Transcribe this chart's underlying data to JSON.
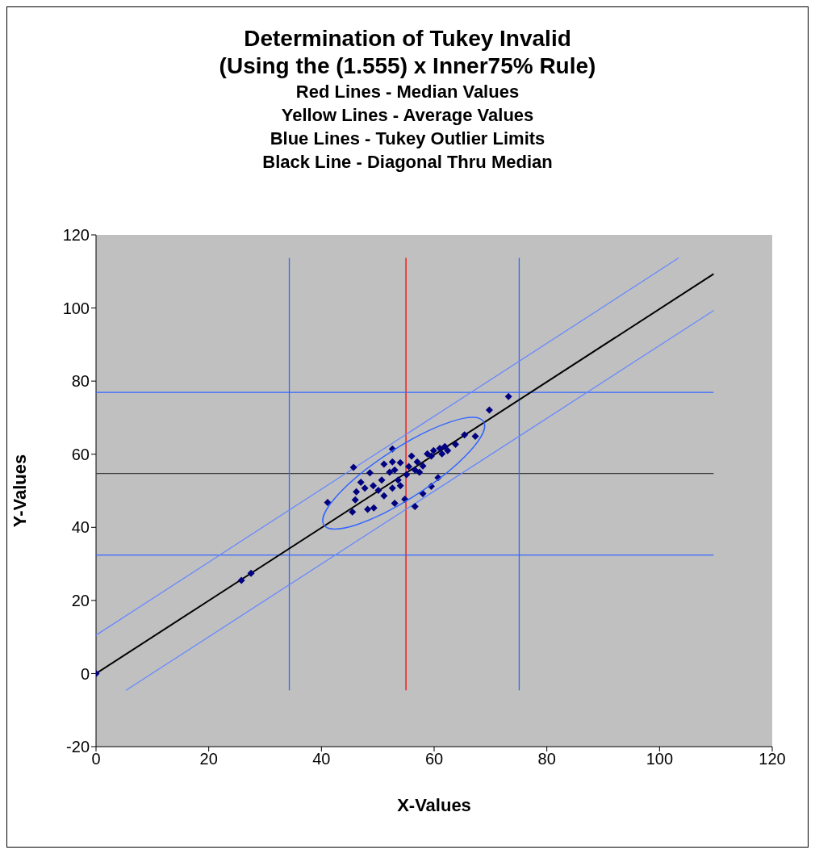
{
  "chart_data": {
    "type": "scatter",
    "title": "Determination of Tukey Invalid\n(Using the (1.555) x Inner75% Rule)",
    "subtitle": "Red Lines - Median Values\nYellow Lines - Average Values\nBlue Lines - Tukey Outlier Limits\nBlack Line - Diagonal Thru Median",
    "xlabel": "X-Values",
    "ylabel": "Y-Values",
    "xlim": [
      0,
      120
    ],
    "xticks": [
      0,
      20,
      40,
      60,
      80,
      100,
      120
    ],
    "ylim": [
      -20,
      120
    ],
    "yticks": [
      -20,
      0,
      20,
      40,
      60,
      80,
      100,
      120
    ],
    "grid": false,
    "series": [
      {
        "type": "line",
        "color": "#ff0000",
        "x": [
          55,
          55
        ],
        "values": [
          -4.6,
          113.7
        ]
      },
      {
        "type": "line",
        "color": "#404040",
        "x": [
          0,
          109.6
        ],
        "values": [
          54.7,
          54.7
        ]
      },
      {
        "type": "line",
        "color": "#3366ff",
        "x": [
          34.3,
          34.3
        ],
        "values": [
          -4.6,
          113.7
        ]
      },
      {
        "type": "line",
        "color": "#3366ff",
        "x": [
          75.1,
          75.1
        ],
        "values": [
          -4.6,
          113.7
        ]
      },
      {
        "type": "line",
        "color": "#3366ff",
        "x": [
          0,
          109.6
        ],
        "values": [
          76.9,
          76.9
        ]
      },
      {
        "type": "line",
        "color": "#3366ff",
        "x": [
          0,
          109.6
        ],
        "values": [
          32.4,
          32.4
        ]
      },
      {
        "type": "line",
        "color": "#6688ff",
        "x": [
          0,
          103.4
        ],
        "values": [
          10.5,
          113.7
        ]
      },
      {
        "type": "line",
        "color": "#6688ff",
        "x": [
          5.3,
          109.6
        ],
        "values": [
          -4.6,
          99.3
        ]
      },
      {
        "type": "line",
        "color": "#000000",
        "x": [
          0,
          109.6
        ],
        "values": [
          0,
          109.3
        ]
      },
      {
        "type": "scatter",
        "color": "#000080",
        "marker": "diamond",
        "x": [
          0,
          25.8,
          27.5,
          73.2,
          69.8,
          65.4,
          67.3,
          63.8,
          52.6,
          45.7,
          41.1,
          56.6,
          45.5,
          48.6,
          58.0,
          59.5,
          60.7,
          53.0,
          54.8,
          47.0,
          46.2,
          49.3,
          48.2,
          46.0,
          51.1,
          57.0,
          58.8,
          61.0,
          61.9,
          59.9,
          56.0,
          54.0,
          52.1,
          50.7,
          49.2,
          53.6,
          55.1,
          56.6,
          58.0,
          52.6,
          54.0,
          51.1,
          59.5,
          57.4,
          55.5,
          53.0,
          50.1,
          47.7,
          52.6,
          61.4,
          62.4
        ],
        "values": [
          0,
          25.5,
          27.4,
          75.8,
          72.1,
          65.3,
          64.9,
          62.7,
          61.4,
          56.4,
          46.8,
          45.7,
          44.2,
          54.9,
          49.2,
          51.2,
          53.6,
          46.6,
          47.7,
          52.3,
          49.7,
          45.3,
          44.9,
          47.5,
          48.6,
          57.9,
          60.1,
          61.6,
          62.1,
          61.0,
          59.5,
          57.7,
          55.1,
          52.9,
          51.4,
          52.9,
          54.4,
          55.7,
          56.8,
          50.7,
          51.4,
          57.3,
          59.5,
          55.1,
          56.6,
          55.7,
          50.1,
          50.7,
          57.9,
          60.1,
          61.0
        ]
      }
    ]
  }
}
